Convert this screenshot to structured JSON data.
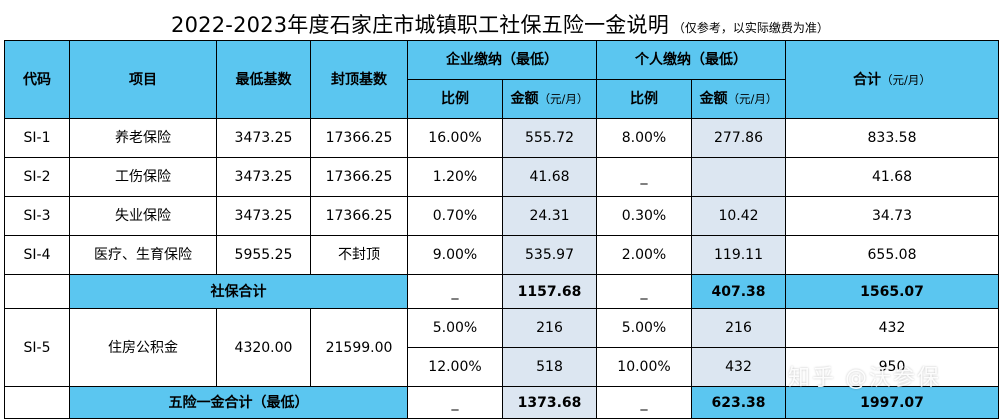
{
  "title": {
    "main": "2022-2023年度石家庄市城镇职工社保五险一金说明",
    "note": "（仅参考，以实际缴费为准）"
  },
  "header": {
    "code": "代码",
    "item": "项目",
    "min_base": "最低基数",
    "max_base": "封顶基数",
    "enterprise": "企业缴纳（最低）",
    "personal": "个人缴纳（最低）",
    "total": "合计",
    "total_unit": "（元/月）",
    "ratio": "比例",
    "amount": "金额",
    "amount_unit": "（元/月）"
  },
  "rows": [
    {
      "code": "SI-1",
      "item": "养老保险",
      "min_base": "3473.25",
      "max_base": "17366.25",
      "ent_ratio": "16.00%",
      "ent_amount": "555.72",
      "per_ratio": "8.00%",
      "per_amount": "277.86",
      "total": "833.58"
    },
    {
      "code": "SI-2",
      "item": "工伤保险",
      "min_base": "3473.25",
      "max_base": "17366.25",
      "ent_ratio": "1.20%",
      "ent_amount": "41.68",
      "per_ratio": "_",
      "per_amount": "",
      "total": "41.68"
    },
    {
      "code": "SI-3",
      "item": "失业保险",
      "min_base": "3473.25",
      "max_base": "17366.25",
      "ent_ratio": "0.70%",
      "ent_amount": "24.31",
      "per_ratio": "0.30%",
      "per_amount": "10.42",
      "total": "34.73"
    },
    {
      "code": "SI-4",
      "item": "医疗、生育保险",
      "min_base": "5955.25",
      "max_base": "不封顶",
      "ent_ratio": "9.00%",
      "ent_amount": "535.97",
      "per_ratio": "2.00%",
      "per_amount": "119.11",
      "total": "655.08"
    }
  ],
  "social_total": {
    "label": "社保合计",
    "ent_ratio": "_",
    "ent_amount": "1157.68",
    "per_ratio": "_",
    "per_amount": "407.38",
    "total": "1565.07"
  },
  "fund": {
    "code": "SI-5",
    "item": "住房公积金",
    "min_base": "4320.00",
    "max_base": "21599.00",
    "rows": [
      {
        "ent_ratio": "5.00%",
        "ent_amount": "216",
        "per_ratio": "5.00%",
        "per_amount": "216",
        "total": "432"
      },
      {
        "ent_ratio": "12.00%",
        "ent_amount": "518",
        "per_ratio": "10.00%",
        "per_amount": "432",
        "total": "950"
      }
    ]
  },
  "grand_total": {
    "label": "五险一金合计（最低）",
    "ent_ratio": "_",
    "ent_amount": "1373.68",
    "per_ratio": "_",
    "per_amount": "623.38",
    "total": "1997.07"
  },
  "watermark": "知乎 @沃参保",
  "colors": {
    "header_bg": "#5bc6f0",
    "amount_bg": "#dce6f1",
    "border": "#000000"
  }
}
